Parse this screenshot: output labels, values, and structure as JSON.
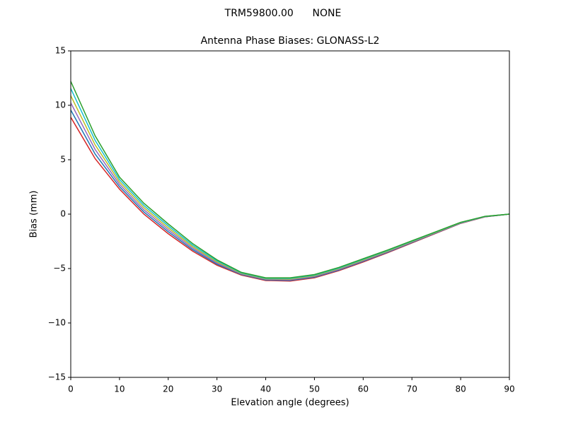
{
  "chart_data": {
    "type": "line",
    "suptitle": "TRM59800.00      NONE",
    "title": "Antenna Phase Biases: GLONASS-L2",
    "xlabel": "Elevation angle (degrees)",
    "ylabel": "Bias (mm)",
    "x": [
      0,
      5,
      10,
      15,
      20,
      25,
      30,
      35,
      40,
      45,
      50,
      55,
      60,
      65,
      70,
      75,
      80,
      85,
      90
    ],
    "xlim": [
      0,
      90
    ],
    "xticks": [
      0,
      10,
      20,
      30,
      40,
      50,
      60,
      70,
      80,
      90
    ],
    "ylim": [
      -15,
      15
    ],
    "yticks": [
      {
        "value": -15,
        "label": "−15"
      },
      {
        "value": -10,
        "label": "−10"
      },
      {
        "value": -5,
        "label": "−5"
      },
      0,
      5,
      10,
      15
    ],
    "series": [
      {
        "color": "#d62728",
        "values": [
          8.9,
          5.1,
          2.3,
          0.0,
          -1.8,
          -3.4,
          -4.7,
          -5.6,
          -6.1,
          -6.15,
          -5.85,
          -5.2,
          -4.4,
          -3.55,
          -2.65,
          -1.75,
          -0.85,
          -0.25,
          0
        ]
      },
      {
        "color": "#1f77b4",
        "values": [
          9.56,
          5.52,
          2.52,
          0.2,
          -1.62,
          -3.26,
          -4.6,
          -5.55,
          -6.05,
          -6.09,
          -5.79,
          -5.14,
          -4.34,
          -3.5,
          -2.61,
          -1.72,
          -0.83,
          -0.24,
          0
        ]
      },
      {
        "color": "#9467bd",
        "values": [
          10.22,
          5.94,
          2.74,
          0.4,
          -1.44,
          -3.12,
          -4.5,
          -5.5,
          -6.0,
          -6.03,
          -5.73,
          -5.08,
          -4.28,
          -3.45,
          -2.57,
          -1.69,
          -0.81,
          -0.23,
          0
        ]
      },
      {
        "color": "#bcbd22",
        "values": [
          10.88,
          6.36,
          2.96,
          0.6,
          -1.26,
          -2.98,
          -4.4,
          -5.45,
          -5.95,
          -5.97,
          -5.67,
          -5.02,
          -4.22,
          -3.4,
          -2.53,
          -1.66,
          -0.79,
          -0.22,
          0
        ]
      },
      {
        "color": "#17becf",
        "values": [
          11.54,
          6.78,
          3.18,
          0.8,
          -1.08,
          -2.84,
          -4.3,
          -5.4,
          -5.9,
          -5.91,
          -5.61,
          -4.96,
          -4.16,
          -3.35,
          -2.49,
          -1.63,
          -0.77,
          -0.21,
          0
        ]
      },
      {
        "color": "#2ca02c",
        "values": [
          12.2,
          7.2,
          3.4,
          1.0,
          -0.9,
          -2.7,
          -4.2,
          -5.35,
          -5.85,
          -5.85,
          -5.55,
          -4.9,
          -4.1,
          -3.3,
          -2.45,
          -1.6,
          -0.75,
          -0.2,
          0
        ]
      }
    ]
  }
}
